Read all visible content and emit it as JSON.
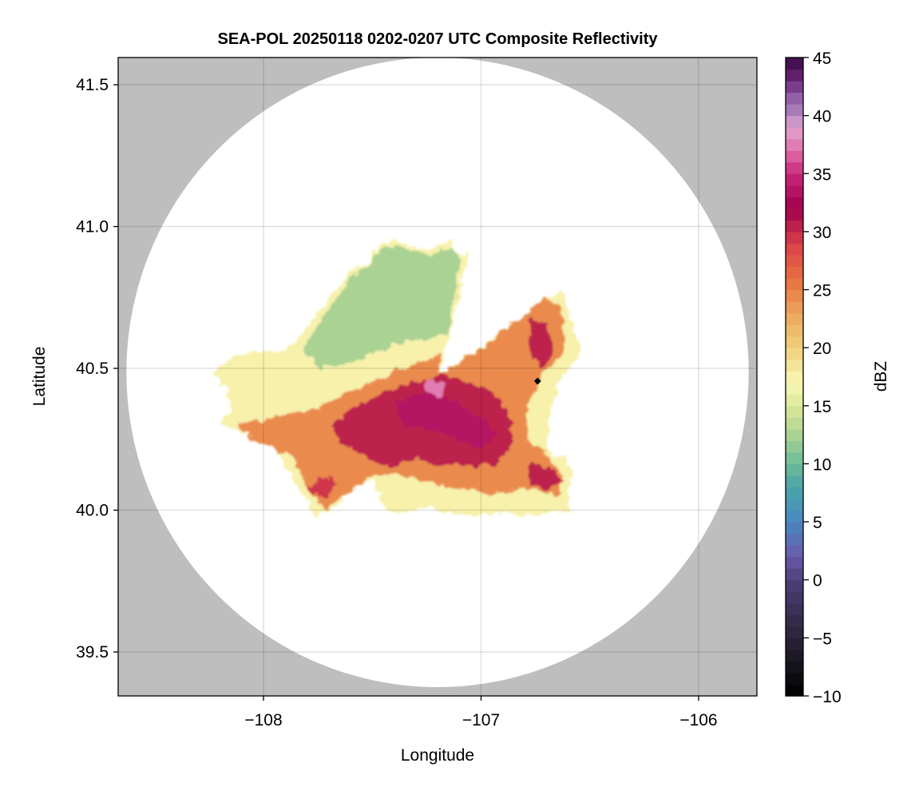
{
  "chart_data": {
    "type": "heatmap",
    "title": "SEA-POL 20250118 0202-0207 UTC Composite Reflectivity",
    "xlabel": "Longitude",
    "ylabel": "Latitude",
    "xlim": [
      -108.668,
      -105.732
    ],
    "ylim": [
      39.345,
      41.596
    ],
    "xticks": [
      -108,
      -107,
      -106
    ],
    "xtick_labels": [
      "−108",
      "−107",
      "−106"
    ],
    "yticks": [
      39.5,
      40.0,
      40.5,
      41.0,
      41.5
    ],
    "ytick_labels": [
      "39.5",
      "40.0",
      "40.5",
      "41.0",
      "41.5"
    ],
    "grid": true,
    "background_color": "#bebebe",
    "coverage": {
      "center": [
        -107.2,
        40.486
      ],
      "lon_radius": 1.43,
      "lat_radius": 1.11,
      "color": "#ffffff"
    },
    "radar_marker": {
      "lon": -106.74,
      "lat": 40.455,
      "shape": "diamond",
      "color": "#000000"
    },
    "colorbar": {
      "label": "dBZ",
      "range": [
        -10,
        45
      ],
      "bin_width": 1,
      "ticks": [
        -10,
        -5,
        0,
        5,
        10,
        15,
        20,
        25,
        30,
        35,
        40,
        45
      ],
      "tick_labels": [
        "−10",
        "−5",
        "0",
        "5",
        "10",
        "15",
        "20",
        "25",
        "30",
        "35",
        "40",
        "45"
      ],
      "stops": [
        [
          -10,
          "#000000"
        ],
        [
          -5,
          "#2a2438"
        ],
        [
          0,
          "#4e3f7a"
        ],
        [
          2,
          "#6a5aaa"
        ],
        [
          5,
          "#4a88c0"
        ],
        [
          8,
          "#4aa4a8"
        ],
        [
          10,
          "#6cbb98"
        ],
        [
          13,
          "#b5d792"
        ],
        [
          15,
          "#dce898"
        ],
        [
          17,
          "#f8f7b6"
        ],
        [
          20,
          "#f0d07a"
        ],
        [
          23,
          "#eca55a"
        ],
        [
          26,
          "#e87040"
        ],
        [
          29,
          "#d8404a"
        ],
        [
          32,
          "#a0004e"
        ],
        [
          35,
          "#c8287a"
        ],
        [
          37,
          "#e070aa"
        ],
        [
          39,
          "#e4a4d0"
        ],
        [
          40,
          "#b088c0"
        ],
        [
          42,
          "#8a52a0"
        ],
        [
          43,
          "#6a2676"
        ],
        [
          45,
          "#3c0848"
        ]
      ]
    },
    "echo_regions": [
      {
        "dbz": 17,
        "polygon": [
          [
            -108.23,
            40.48
          ],
          [
            -108.11,
            40.55
          ],
          [
            -108.0,
            40.56
          ],
          [
            -107.91,
            40.56
          ],
          [
            -107.8,
            40.64
          ],
          [
            -107.76,
            40.69
          ],
          [
            -107.67,
            40.77
          ],
          [
            -107.6,
            40.84
          ],
          [
            -107.52,
            40.87
          ],
          [
            -107.47,
            40.94
          ],
          [
            -107.38,
            40.95
          ],
          [
            -107.3,
            40.92
          ],
          [
            -107.23,
            40.92
          ],
          [
            -107.14,
            40.96
          ],
          [
            -107.12,
            40.9
          ],
          [
            -107.08,
            40.9
          ],
          [
            -107.05,
            40.92
          ],
          [
            -107.19,
            40.48
          ],
          [
            -106.62,
            40.78
          ],
          [
            -106.61,
            40.73
          ],
          [
            -106.57,
            40.62
          ],
          [
            -106.54,
            40.56
          ],
          [
            -106.59,
            40.5
          ],
          [
            -106.64,
            40.45
          ],
          [
            -106.68,
            40.36
          ],
          [
            -106.69,
            40.31
          ],
          [
            -106.7,
            40.22
          ],
          [
            -106.62,
            40.18
          ],
          [
            -106.58,
            40.14
          ],
          [
            -106.59,
            40.07
          ],
          [
            -106.6,
            39.99
          ],
          [
            -106.68,
            39.99
          ],
          [
            -106.79,
            39.98
          ],
          [
            -106.9,
            39.99
          ],
          [
            -107.01,
            39.98
          ],
          [
            -107.16,
            39.99
          ],
          [
            -107.23,
            40.01
          ],
          [
            -107.38,
            39.99
          ],
          [
            -107.45,
            40.02
          ],
          [
            -107.5,
            40.11
          ],
          [
            -107.6,
            40.08
          ],
          [
            -107.67,
            40.01
          ],
          [
            -107.76,
            39.98
          ],
          [
            -107.82,
            40.05
          ],
          [
            -107.87,
            40.11
          ],
          [
            -107.93,
            40.21
          ],
          [
            -108.04,
            40.26
          ],
          [
            -108.15,
            40.29
          ],
          [
            -108.21,
            40.31
          ],
          [
            -108.15,
            40.36
          ],
          [
            -108.17,
            40.43
          ]
        ]
      },
      {
        "dbz": 12,
        "polygon": [
          [
            -107.82,
            40.56
          ],
          [
            -107.76,
            40.64
          ],
          [
            -107.67,
            40.74
          ],
          [
            -107.6,
            40.82
          ],
          [
            -107.52,
            40.86
          ],
          [
            -107.47,
            40.92
          ],
          [
            -107.38,
            40.93
          ],
          [
            -107.23,
            40.9
          ],
          [
            -107.14,
            40.93
          ],
          [
            -107.1,
            40.89
          ],
          [
            -107.15,
            40.62
          ],
          [
            -107.3,
            40.6
          ],
          [
            -107.45,
            40.57
          ],
          [
            -107.6,
            40.52
          ],
          [
            -107.74,
            40.5
          ]
        ]
      },
      {
        "dbz": 24,
        "polygon": [
          [
            -107.95,
            40.33
          ],
          [
            -107.74,
            40.36
          ],
          [
            -107.6,
            40.42
          ],
          [
            -107.45,
            40.47
          ],
          [
            -107.3,
            40.52
          ],
          [
            -107.19,
            40.55
          ],
          [
            -107.19,
            40.48
          ],
          [
            -106.95,
            40.6
          ],
          [
            -106.7,
            40.75
          ],
          [
            -106.62,
            40.7
          ],
          [
            -106.62,
            40.55
          ],
          [
            -106.72,
            40.48
          ],
          [
            -106.78,
            40.38
          ],
          [
            -106.8,
            40.25
          ],
          [
            -106.7,
            40.2
          ],
          [
            -106.62,
            40.12
          ],
          [
            -106.65,
            40.05
          ],
          [
            -106.8,
            40.08
          ],
          [
            -106.95,
            40.06
          ],
          [
            -107.15,
            40.08
          ],
          [
            -107.35,
            40.12
          ],
          [
            -107.5,
            40.12
          ],
          [
            -107.62,
            40.06
          ],
          [
            -107.72,
            40.0
          ],
          [
            -107.8,
            40.08
          ],
          [
            -107.85,
            40.18
          ],
          [
            -108.05,
            40.25
          ],
          [
            -108.12,
            40.3
          ]
        ]
      },
      {
        "dbz": 30,
        "polygon": [
          [
            -107.7,
            40.3
          ],
          [
            -107.55,
            40.38
          ],
          [
            -107.4,
            40.43
          ],
          [
            -107.25,
            40.46
          ],
          [
            -107.19,
            40.48
          ],
          [
            -107.05,
            40.45
          ],
          [
            -106.95,
            40.42
          ],
          [
            -106.88,
            40.35
          ],
          [
            -106.85,
            40.25
          ],
          [
            -106.92,
            40.16
          ],
          [
            -107.1,
            40.15
          ],
          [
            -107.3,
            40.18
          ],
          [
            -107.45,
            40.15
          ],
          [
            -107.55,
            40.2
          ],
          [
            -107.65,
            40.24
          ]
        ]
      },
      {
        "dbz": 30,
        "polygon": [
          [
            -106.78,
            40.68
          ],
          [
            -106.7,
            40.66
          ],
          [
            -106.66,
            40.55
          ],
          [
            -106.72,
            40.5
          ],
          [
            -106.78,
            40.56
          ]
        ]
      },
      {
        "dbz": 30,
        "polygon": [
          [
            -106.78,
            40.17
          ],
          [
            -106.68,
            40.15
          ],
          [
            -106.62,
            40.1
          ],
          [
            -106.7,
            40.07
          ],
          [
            -106.78,
            40.1
          ]
        ]
      },
      {
        "dbz": 29,
        "polygon": [
          [
            -107.8,
            40.07
          ],
          [
            -107.7,
            40.04
          ],
          [
            -107.66,
            40.1
          ],
          [
            -107.75,
            40.12
          ]
        ]
      },
      {
        "dbz": 33,
        "polygon": [
          [
            -107.4,
            40.38
          ],
          [
            -107.25,
            40.42
          ],
          [
            -107.12,
            40.38
          ],
          [
            -107.0,
            40.32
          ],
          [
            -106.92,
            40.27
          ],
          [
            -107.0,
            40.22
          ],
          [
            -107.2,
            40.28
          ],
          [
            -107.35,
            40.3
          ]
        ]
      },
      {
        "dbz": 37,
        "polygon": [
          [
            -107.25,
            40.46
          ],
          [
            -107.16,
            40.45
          ],
          [
            -107.18,
            40.4
          ],
          [
            -107.26,
            40.41
          ]
        ]
      }
    ]
  }
}
